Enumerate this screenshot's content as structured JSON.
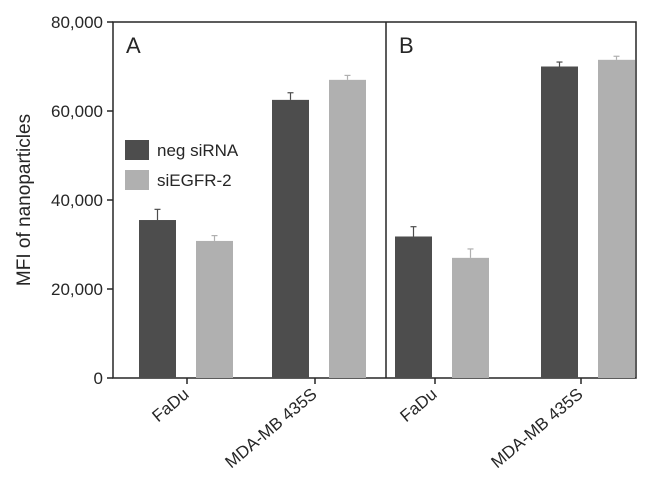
{
  "chart_data": {
    "type": "bar",
    "ylabel": "MFI of nanoparticles",
    "ylim": [
      0,
      80000
    ],
    "yticks": [
      "0",
      "20,000",
      "40,000",
      "60,000",
      "80,000"
    ],
    "grid": false,
    "legend": {
      "placement": "top-left (panel A)",
      "entries": [
        {
          "name": "neg siRNA",
          "color": "#4d4d4d"
        },
        {
          "name": "siEGFR-2",
          "color": "#b0b0b0"
        }
      ]
    },
    "panels": [
      {
        "label": "A",
        "categories": [
          "FaDu",
          "MDA-MB 435S"
        ],
        "series": [
          {
            "name": "neg siRNA",
            "values": [
              35500,
              62500
            ],
            "errors": [
              2400,
              1600
            ]
          },
          {
            "name": "siEGFR-2",
            "values": [
              30800,
              67000
            ],
            "errors": [
              1200,
              1000
            ]
          }
        ]
      },
      {
        "label": "B",
        "categories": [
          "FaDu",
          "MDA-MB 435S"
        ],
        "series": [
          {
            "name": "neg siRNA",
            "values": [
              31800,
              70000
            ],
            "errors": [
              2200,
              1000
            ]
          },
          {
            "name": "siEGFR-2",
            "values": [
              27000,
              71500
            ],
            "errors": [
              2000,
              800
            ]
          }
        ]
      }
    ]
  }
}
